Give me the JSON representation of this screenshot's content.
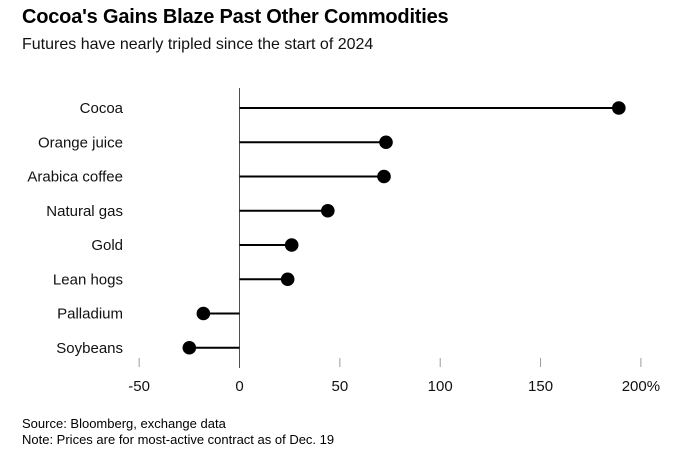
{
  "header": {
    "title": "Cocoa's Gains Blaze Past Other Commodities",
    "subtitle": "Futures have nearly tripled since the start of 2024"
  },
  "footer": {
    "source": "Source: Bloomberg, exchange data",
    "note": "Note: Prices are for most-active contract as of Dec. 19"
  },
  "chart_data": {
    "type": "bar",
    "variant": "horizontal-lollipop",
    "title": "Cocoa's Gains Blaze Past Other Commodities",
    "subtitle": "Futures have nearly tripled since the start of 2024",
    "categories": [
      "Cocoa",
      "Orange juice",
      "Arabica coffee",
      "Natural gas",
      "Gold",
      "Lean hogs",
      "Palladium",
      "Soybeans"
    ],
    "values": [
      189,
      73,
      72,
      44,
      26,
      24,
      -18,
      -25
    ],
    "unit": "%",
    "xlabel": "",
    "ylabel": "",
    "xlim": [
      -62,
      219
    ],
    "x_ticks": [
      -50,
      0,
      50,
      100,
      150,
      200
    ],
    "x_tick_labels": [
      "-50",
      "0",
      "50",
      "100",
      "150",
      "200%"
    ],
    "grid": false,
    "legend": false,
    "colors": {
      "marker": "#000000",
      "stem": "#000000",
      "zero_axis": "#4d4d4d",
      "tick": "#9b9b9b",
      "text": "#111111"
    }
  }
}
